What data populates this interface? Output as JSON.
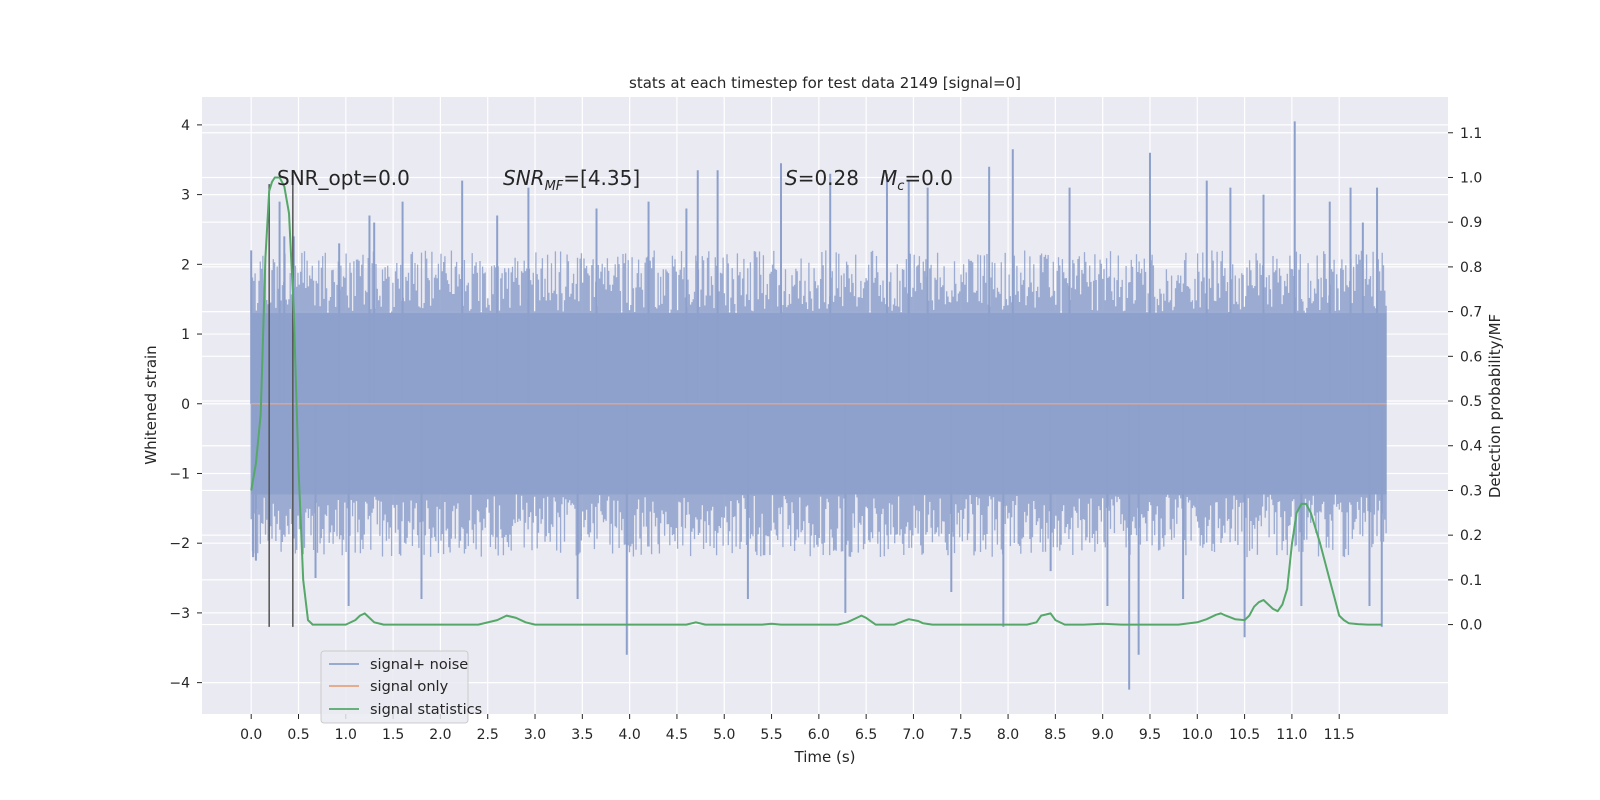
{
  "chart_data": {
    "type": "line",
    "title": "stats at each timestep for test data 2149 [signal=0]",
    "xlabel": "Time (s)",
    "ylabel": "Whitened strain",
    "y2label": "Detection probability/MF",
    "xlim": [
      -0.52,
      12.65
    ],
    "ylim": [
      -4.45,
      4.4
    ],
    "y2lim": [
      -0.2,
      1.18
    ],
    "x_ticks": [
      0.0,
      0.5,
      1.0,
      1.5,
      2.0,
      2.5,
      3.0,
      3.5,
      4.0,
      4.5,
      5.0,
      5.5,
      6.0,
      6.5,
      7.0,
      7.5,
      8.0,
      8.5,
      9.0,
      9.5,
      10.0,
      10.5,
      11.0,
      11.5
    ],
    "x_tick_labels": [
      "0.0",
      "0.5",
      "1.0",
      "1.5",
      "2.0",
      "2.5",
      "3.0",
      "3.5",
      "4.0",
      "4.5",
      "5.0",
      "5.5",
      "6.0",
      "6.5",
      "7.0",
      "7.5",
      "8.0",
      "8.5",
      "9.0",
      "9.5",
      "10.0",
      "10.5",
      "11.0",
      "11.5"
    ],
    "y_ticks": [
      4,
      3,
      2,
      1,
      0,
      -1,
      -2,
      -3,
      -4
    ],
    "y_tick_labels": [
      "4",
      "3",
      "2",
      "1",
      "0",
      "−1",
      "−2",
      "−3",
      "−4"
    ],
    "y2_ticks": [
      1.1,
      1.0,
      0.9,
      0.8,
      0.7,
      0.6,
      0.5,
      0.4,
      0.3,
      0.2,
      0.1,
      0.0
    ],
    "y2_tick_labels": [
      "1.1",
      "1.0",
      "0.9",
      "0.8",
      "0.7",
      "0.6",
      "0.5",
      "0.4",
      "0.3",
      "0.2",
      "0.1",
      "0.0"
    ],
    "grid": true,
    "legend_position": "lower-left",
    "annotations": [
      "SNR_opt=0.0",
      "SNR_MF=[4.35]",
      "S=0.28",
      "M_c=0.0"
    ],
    "vertical_markers_x": [
      0.19,
      0.44
    ],
    "series": [
      {
        "name": "signal+ noise",
        "color": "#8da0cb",
        "axis": "left",
        "x_range": [
          0.0,
          12.0
        ],
        "band_envelope": [
          -1.3,
          1.3
        ],
        "peak_spikes": [
          {
            "x": 0.0,
            "y": 2.2
          },
          {
            "x": 0.02,
            "y": -2.2
          },
          {
            "x": 0.05,
            "y": -2.25
          },
          {
            "x": 0.3,
            "y": 2.9
          },
          {
            "x": 0.35,
            "y": 2.4
          },
          {
            "x": 0.45,
            "y": 2.4
          },
          {
            "x": 0.68,
            "y": -2.5
          },
          {
            "x": 0.93,
            "y": 2.3
          },
          {
            "x": 1.03,
            "y": -2.9
          },
          {
            "x": 1.25,
            "y": 2.7
          },
          {
            "x": 1.3,
            "y": 2.6
          },
          {
            "x": 1.6,
            "y": 2.9
          },
          {
            "x": 1.8,
            "y": -2.8
          },
          {
            "x": 2.23,
            "y": 3.2
          },
          {
            "x": 2.6,
            "y": 2.7
          },
          {
            "x": 2.93,
            "y": 3.1
          },
          {
            "x": 3.45,
            "y": -2.8
          },
          {
            "x": 3.65,
            "y": 2.8
          },
          {
            "x": 3.97,
            "y": -3.6
          },
          {
            "x": 4.2,
            "y": 2.9
          },
          {
            "x": 4.6,
            "y": 2.8
          },
          {
            "x": 4.72,
            "y": 3.35
          },
          {
            "x": 4.93,
            "y": 3.35
          },
          {
            "x": 5.25,
            "y": -2.8
          },
          {
            "x": 5.6,
            "y": 3.45
          },
          {
            "x": 6.12,
            "y": 3.3
          },
          {
            "x": 6.28,
            "y": -3.0
          },
          {
            "x": 6.72,
            "y": 3.3
          },
          {
            "x": 6.95,
            "y": 3.2
          },
          {
            "x": 7.15,
            "y": 3.1
          },
          {
            "x": 7.4,
            "y": -2.7
          },
          {
            "x": 7.8,
            "y": 3.4
          },
          {
            "x": 7.95,
            "y": -3.2
          },
          {
            "x": 8.05,
            "y": 3.65
          },
          {
            "x": 8.45,
            "y": -2.4
          },
          {
            "x": 8.65,
            "y": 3.1
          },
          {
            "x": 9.05,
            "y": -2.9
          },
          {
            "x": 9.28,
            "y": -4.1
          },
          {
            "x": 9.38,
            "y": -3.6
          },
          {
            "x": 9.5,
            "y": 3.6
          },
          {
            "x": 9.85,
            "y": -2.8
          },
          {
            "x": 10.1,
            "y": 3.2
          },
          {
            "x": 10.35,
            "y": 3.1
          },
          {
            "x": 10.5,
            "y": -3.35
          },
          {
            "x": 10.7,
            "y": 3.0
          },
          {
            "x": 11.03,
            "y": 4.05
          },
          {
            "x": 11.1,
            "y": -2.9
          },
          {
            "x": 11.4,
            "y": 2.9
          },
          {
            "x": 11.62,
            "y": 3.1
          },
          {
            "x": 11.75,
            "y": 2.6
          },
          {
            "x": 11.82,
            "y": -2.9
          },
          {
            "x": 11.9,
            "y": 3.1
          },
          {
            "x": 11.95,
            "y": -3.2
          }
        ]
      },
      {
        "name": "signal only",
        "color": "#e5a37f",
        "axis": "left",
        "x": [
          0.0,
          12.0
        ],
        "y": [
          0.0,
          0.0
        ]
      },
      {
        "name": "signal statistics",
        "color": "#55a868",
        "axis": "right",
        "x": [
          0.0,
          0.05,
          0.1,
          0.15,
          0.19,
          0.22,
          0.25,
          0.3,
          0.35,
          0.4,
          0.45,
          0.5,
          0.55,
          0.6,
          0.65,
          0.7,
          0.8,
          0.9,
          1.0,
          1.1,
          1.15,
          1.2,
          1.25,
          1.3,
          1.4,
          1.6,
          1.8,
          2.0,
          2.2,
          2.4,
          2.6,
          2.7,
          2.8,
          2.9,
          3.0,
          3.2,
          3.4,
          3.6,
          3.8,
          4.0,
          4.2,
          4.4,
          4.6,
          4.7,
          4.8,
          5.0,
          5.2,
          5.4,
          5.5,
          5.6,
          5.8,
          6.0,
          6.2,
          6.3,
          6.4,
          6.45,
          6.5,
          6.6,
          6.8,
          6.95,
          7.05,
          7.1,
          7.2,
          7.4,
          7.6,
          7.8,
          8.0,
          8.2,
          8.3,
          8.35,
          8.45,
          8.5,
          8.6,
          8.8,
          9.0,
          9.2,
          9.4,
          9.6,
          9.8,
          10.0,
          10.1,
          10.2,
          10.25,
          10.3,
          10.4,
          10.5,
          10.55,
          10.6,
          10.65,
          10.7,
          10.8,
          10.85,
          10.9,
          10.95,
          11.0,
          11.05,
          11.1,
          11.15,
          11.2,
          11.3,
          11.4,
          11.45,
          11.5,
          11.55,
          11.6,
          11.7,
          11.8,
          11.9,
          11.95
        ],
        "y": [
          0.3,
          0.36,
          0.47,
          0.82,
          0.97,
          0.99,
          1.0,
          1.0,
          0.98,
          0.92,
          0.7,
          0.35,
          0.1,
          0.01,
          0.0,
          0.0,
          0.0,
          0.0,
          0.0,
          0.01,
          0.02,
          0.025,
          0.015,
          0.005,
          0.0,
          0.0,
          0.0,
          0.0,
          0.0,
          0.0,
          0.01,
          0.02,
          0.015,
          0.005,
          0.0,
          0.0,
          0.0,
          0.0,
          0.0,
          0.0,
          0.0,
          0.0,
          0.0,
          0.005,
          0.0,
          0.0,
          0.0,
          0.0,
          0.002,
          0.0,
          0.0,
          0.0,
          0.0,
          0.005,
          0.015,
          0.02,
          0.015,
          0.0,
          0.0,
          0.012,
          0.008,
          0.003,
          0.0,
          0.0,
          0.0,
          0.0,
          0.0,
          0.0,
          0.005,
          0.02,
          0.025,
          0.01,
          0.0,
          0.0,
          0.002,
          0.0,
          0.0,
          0.0,
          0.0,
          0.005,
          0.012,
          0.022,
          0.025,
          0.02,
          0.012,
          0.01,
          0.02,
          0.04,
          0.05,
          0.055,
          0.035,
          0.03,
          0.045,
          0.08,
          0.18,
          0.25,
          0.27,
          0.27,
          0.25,
          0.18,
          0.1,
          0.06,
          0.02,
          0.01,
          0.003,
          0.001,
          0.0,
          0.0,
          0.0
        ]
      }
    ]
  }
}
